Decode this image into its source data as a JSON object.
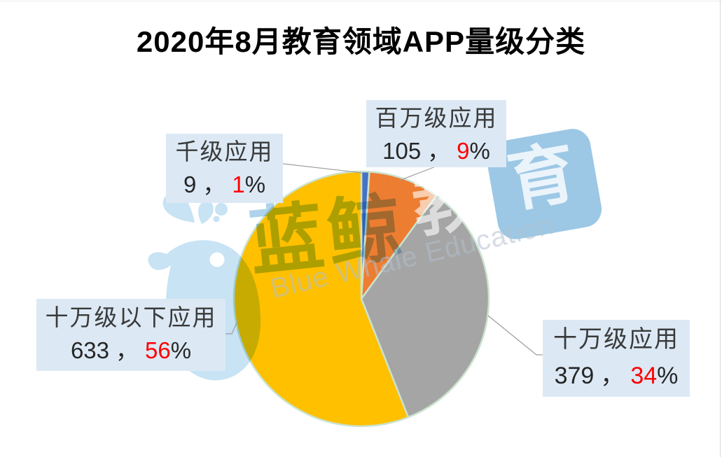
{
  "title": "2020年8月教育领域APP量级分类",
  "chart_data": {
    "type": "pie",
    "title": "2020年8月教育领域APP量级分类",
    "start_angle_deg": 0,
    "direction": "clockwise",
    "legend": "none",
    "slice_border_color": "#CBE3CF",
    "segments": [
      {
        "label": "千级应用",
        "value": 9,
        "percent": 1,
        "color": "#4472C4"
      },
      {
        "label": "百万级应用",
        "value": 105,
        "percent": 9,
        "color": "#ED7D31"
      },
      {
        "label": "十万级应用",
        "value": 379,
        "percent": 34,
        "color": "#A5A5A5"
      },
      {
        "label": "十万级以下应用",
        "value": 633,
        "percent": 56,
        "color": "#FFC000"
      }
    ]
  },
  "callouts": {
    "thousand": {
      "name": "千级应用",
      "value": "9",
      "sep": "，",
      "pct": "1",
      "unit": "%"
    },
    "million": {
      "name": "百万级应用",
      "value": "105",
      "sep": "，",
      "pct": "9",
      "unit": "%"
    },
    "hundredk": {
      "name": "十万级应用",
      "value": "379",
      "sep": "，",
      "pct": "34",
      "unit": "%"
    },
    "under_hundredk": {
      "name": "十万级以下应用",
      "value": "633",
      "sep": "，",
      "pct": "56",
      "unit": "%"
    }
  },
  "watermark": {
    "cn": "蓝鲸",
    "badge_char_left": "教",
    "badge_char_right": "育",
    "en": "Blue Whale Education",
    "logo": "whale-icon"
  },
  "colors": {
    "background": "#FFFFFF",
    "title_color": "#000000",
    "callout_bg": "#DCE9F5",
    "callout_text": "#3A3A3A",
    "percent_red": "#FF0000",
    "leader_line": "#9E9E9E",
    "light_blue": "#C7E3F4",
    "text_blue": "#AED3EC",
    "badge_blue": "#9CC8E6",
    "en_gray": "#B3C0CE"
  }
}
